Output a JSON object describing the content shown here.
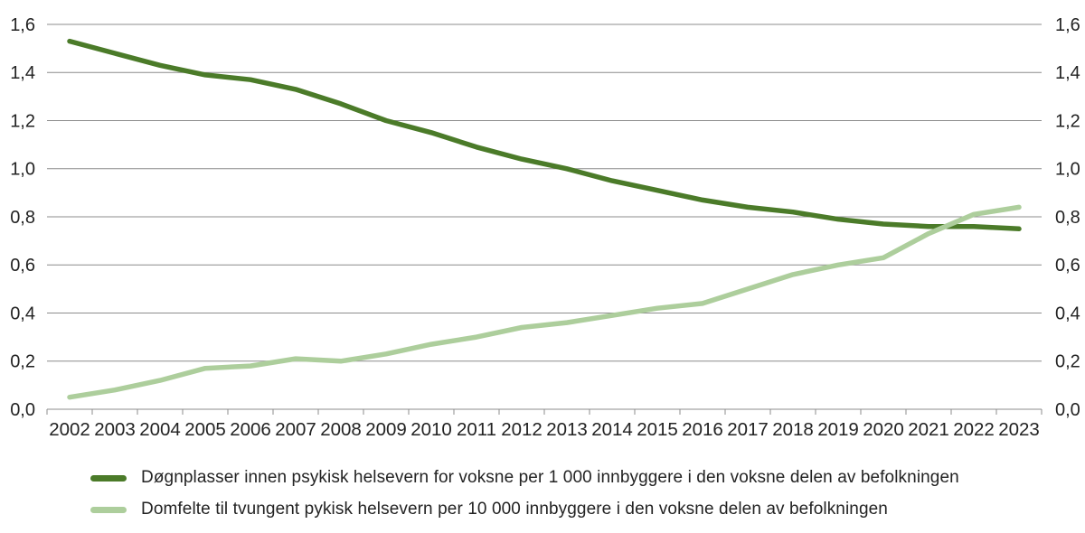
{
  "chart_data": {
    "type": "line",
    "title": "",
    "categories": [
      "2002",
      "2003",
      "2004",
      "2005",
      "2006",
      "2007",
      "2008",
      "2009",
      "2010",
      "2011",
      "2012",
      "2013",
      "2014",
      "2015",
      "2016",
      "2017",
      "2018",
      "2019",
      "2020",
      "2021",
      "2022",
      "2023"
    ],
    "series": [
      {
        "name": "Døgnplasser innen psykisk helsevern for voksne per 1 000 innbyggere i den voksne delen av befolkningen",
        "color": "#4b7b29",
        "values": [
          1.53,
          1.48,
          1.43,
          1.39,
          1.37,
          1.33,
          1.27,
          1.2,
          1.15,
          1.09,
          1.04,
          1.0,
          0.95,
          0.91,
          0.87,
          0.84,
          0.82,
          0.79,
          0.77,
          0.76,
          0.76,
          0.75
        ]
      },
      {
        "name": "Domfelte til tvungent pykisk helsevern per 10 000 innbyggere i den voksne delen av befolkningen",
        "color": "#adce9c",
        "values": [
          0.05,
          0.08,
          0.12,
          0.17,
          0.18,
          0.21,
          0.2,
          0.23,
          0.27,
          0.3,
          0.34,
          0.36,
          0.39,
          0.42,
          0.44,
          0.5,
          0.56,
          0.6,
          0.63,
          0.73,
          0.81,
          0.84
        ]
      }
    ],
    "xlabel": "",
    "ylabel": "",
    "y_axis": {
      "min": 0.0,
      "max": 1.6,
      "step": 0.2,
      "tick_labels": [
        "0,0",
        "0,2",
        "0,4",
        "0,6",
        "0,8",
        "1,0",
        "1,2",
        "1,4",
        "1,6"
      ],
      "label_sides": "left-and-right",
      "decimal_separator": ","
    },
    "grid": "horizontal",
    "legend_position": "bottom-left"
  },
  "style": {
    "grid_color": "#8c8c8c",
    "axis_color": "#8c8c8c",
    "text_color": "#232323",
    "background": "#ffffff"
  }
}
